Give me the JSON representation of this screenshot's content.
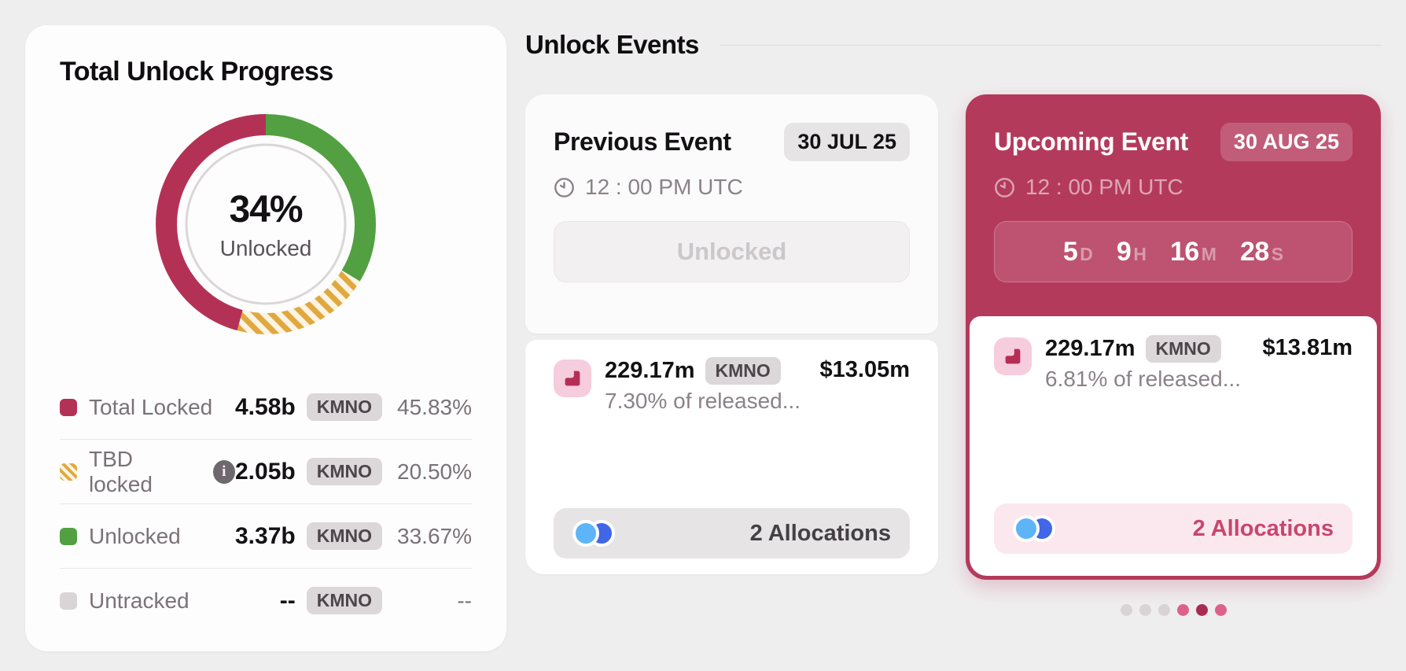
{
  "progress_card": {
    "title": "Total Unlock Progress",
    "center_value": "34%",
    "center_label": "Unlocked",
    "legend": [
      {
        "label": "Total Locked",
        "amount": "4.58b",
        "token": "KMNO",
        "percent": "45.83%"
      },
      {
        "label": "TBD locked",
        "amount": "2.05b",
        "token": "KMNO",
        "percent": "20.50%"
      },
      {
        "label": "Unlocked",
        "amount": "3.37b",
        "token": "KMNO",
        "percent": "33.67%"
      },
      {
        "label": "Untracked",
        "amount": "--",
        "token": "KMNO",
        "percent": "--"
      }
    ]
  },
  "chart_data": {
    "type": "pie",
    "subtype": "donut",
    "title": "Total Unlock Progress",
    "center_label": "34% Unlocked",
    "start_angle": "top",
    "direction": "clockwise",
    "units": "percent of total supply",
    "series": [
      {
        "name": "Unlocked",
        "value": 33.67,
        "color": "#52a041",
        "pattern": "solid"
      },
      {
        "name": "TBD locked",
        "value": 20.5,
        "color": "#e1a83e",
        "pattern": "diagonal-stripes"
      },
      {
        "name": "Total Locked",
        "value": 45.83,
        "color": "#b43156",
        "pattern": "solid"
      }
    ]
  },
  "events": {
    "section_title": "Unlock Events",
    "previous": {
      "title": "Previous Event",
      "date_badge": "30 JUL 25",
      "time": "12 : 00 PM UTC",
      "status_button": "Unlocked",
      "amount": "229.17m",
      "token": "KMNO",
      "released_note": "7.30% of released...",
      "usd_value": "$13.05m",
      "allocations": "2 Allocations"
    },
    "upcoming": {
      "title": "Upcoming Event",
      "date_badge": "30 AUG 25",
      "time": "12 : 00 PM UTC",
      "countdown": [
        {
          "value": "5",
          "unit": "D"
        },
        {
          "value": "9",
          "unit": "H"
        },
        {
          "value": "16",
          "unit": "M"
        },
        {
          "value": "28",
          "unit": "S"
        }
      ],
      "amount": "229.17m",
      "token": "KMNO",
      "released_note": "6.81% of released...",
      "usd_value": "$13.81m",
      "allocations": "2 Allocations"
    },
    "pagination": {
      "dots": [
        "inactive",
        "inactive",
        "inactive",
        "pink",
        "active",
        "pink"
      ]
    }
  },
  "colors": {
    "page_bg": "#efeeef",
    "crimson": "#b43a5c",
    "green": "#52a041",
    "yellow": "#e1a83e",
    "stripe_light": "#fbf4e4",
    "untracked_gray": "#d9d4d6",
    "active_dot": "#a92b50",
    "pink_dot": "#de6189",
    "allocation_blue_1": "#5db4f7",
    "allocation_blue_2": "#4166e8"
  }
}
